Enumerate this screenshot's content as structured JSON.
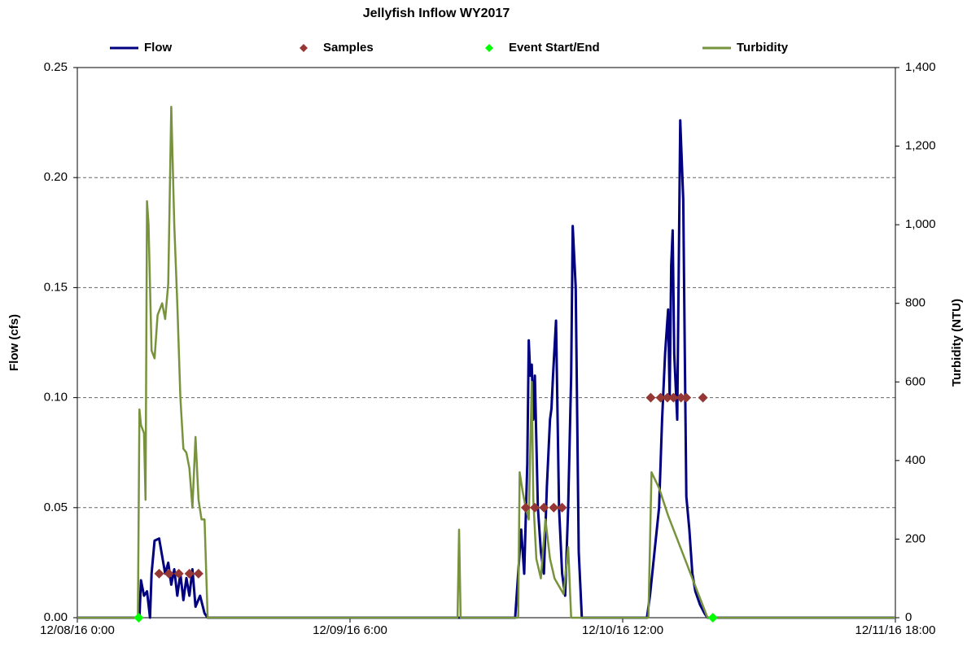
{
  "chart_data": {
    "type": "line",
    "title": "Jellyfish Inflow WY2017",
    "ylabel": "Flow (cfs)",
    "y2label": "Turbidity (NTU)",
    "legend": "top",
    "grid": true,
    "xlim": [
      "12/08/16 0:00",
      "12/11/16 18:00"
    ],
    "xticks": [
      "12/08/16 0:00",
      "12/09/16 6:00",
      "12/10/16 12:00",
      "12/11/16 18:00"
    ],
    "ylim": [
      0,
      0.25
    ],
    "yticks": [
      {
        "value": 0,
        "label": "0.00"
      },
      {
        "value": 0.05,
        "label": "0.05"
      },
      {
        "value": 0.1,
        "label": "0.10"
      },
      {
        "value": 0.15,
        "label": "0.15"
      },
      {
        "value": 0.2,
        "label": "0.20"
      },
      {
        "value": 0.25,
        "label": "0.25"
      }
    ],
    "y2lim": [
      0,
      1400
    ],
    "y2ticks": [
      0,
      200,
      400,
      600,
      800,
      {
        "value": 1000,
        "label": "1,000"
      },
      {
        "value": 1200,
        "label": "1,200"
      },
      {
        "value": 1400,
        "label": "1,400"
      }
    ],
    "series": [
      {
        "name": "Flow",
        "color": "#000080",
        "mode": "line",
        "x": [
          "12/08/16 0:00",
          "12/08/16 6:50",
          "12/08/16 7:00",
          "12/08/16 7:20",
          "12/08/16 7:40",
          "12/08/16 8:00",
          "12/08/16 8:10",
          "12/08/16 8:30",
          "12/08/16 9:00",
          "12/08/16 9:20",
          "12/08/16 9:40",
          "12/08/16 10:00",
          "12/08/16 10:20",
          "12/08/16 10:40",
          "12/08/16 11:00",
          "12/08/16 11:20",
          "12/08/16 11:40",
          "12/08/16 12:00",
          "12/08/16 12:20",
          "12/08/16 12:40",
          "12/08/16 13:00",
          "12/08/16 13:30",
          "12/08/16 14:00",
          "12/08/16 14:20",
          "12/10/16 0:10",
          "12/10/16 0:30",
          "12/10/16 0:50",
          "12/10/16 1:10",
          "12/10/16 1:30",
          "12/10/16 1:40",
          "12/10/16 1:50",
          "12/10/16 2:00",
          "12/10/16 2:10",
          "12/10/16 2:20",
          "12/10/16 2:40",
          "12/10/16 3:00",
          "12/10/16 3:20",
          "12/10/16 3:40",
          "12/10/16 4:00",
          "12/10/16 4:10",
          "12/10/16 4:20",
          "12/10/16 4:40",
          "12/10/16 5:00",
          "12/10/16 5:20",
          "12/10/16 5:40",
          "12/10/16 6:00",
          "12/10/16 6:20",
          "12/10/16 6:30",
          "12/10/16 6:50",
          "12/10/16 7:10",
          "12/10/16 7:30",
          "12/10/16 14:40",
          "12/10/16 15:00",
          "12/10/16 15:30",
          "12/10/16 16:00",
          "12/10/16 16:20",
          "12/10/16 16:40",
          "12/10/16 17:00",
          "12/10/16 17:10",
          "12/10/16 17:20",
          "12/10/16 17:30",
          "12/10/16 17:40",
          "12/10/16 18:00",
          "12/10/16 18:20",
          "12/10/16 18:40",
          "12/10/16 18:50",
          "12/10/16 19:00",
          "12/10/16 19:20",
          "12/10/16 19:40",
          "12/10/16 20:00",
          "12/10/16 20:30",
          "12/10/16 21:00",
          "12/10/16 21:20",
          "12/11/16 18:00"
        ],
        "values": [
          0,
          0,
          0.017,
          0.01,
          0.012,
          0.0,
          0.02,
          0.035,
          0.036,
          0.028,
          0.02,
          0.025,
          0.015,
          0.022,
          0.01,
          0.02,
          0.008,
          0.018,
          0.01,
          0.022,
          0.005,
          0.01,
          0.002,
          0,
          0,
          0.02,
          0.04,
          0.02,
          0.07,
          0.126,
          0.11,
          0.115,
          0.09,
          0.11,
          0.05,
          0.03,
          0.02,
          0.06,
          0.09,
          0.095,
          0.11,
          0.135,
          0.05,
          0.02,
          0.01,
          0.05,
          0.11,
          0.178,
          0.15,
          0.03,
          0,
          0,
          0.01,
          0.03,
          0.05,
          0.09,
          0.12,
          0.14,
          0.1,
          0.16,
          0.176,
          0.12,
          0.09,
          0.226,
          0.19,
          0.12,
          0.055,
          0.04,
          0.02,
          0.012,
          0.006,
          0.002,
          0,
          0
        ]
      },
      {
        "name": "Samples",
        "color": "#953735",
        "mode": "marker",
        "x": [
          "12/08/16 9:00",
          "12/08/16 10:05",
          "12/08/16 11:10",
          "12/08/16 12:20",
          "12/08/16 13:20",
          "12/10/16 1:20",
          "12/10/16 2:20",
          "12/10/16 3:20",
          "12/10/16 4:25",
          "12/10/16 5:20",
          "12/10/16 15:05",
          "12/10/16 16:10",
          "12/10/16 16:55",
          "12/10/16 17:35",
          "12/10/16 18:25",
          "12/10/16 19:00",
          "12/10/16 20:50"
        ],
        "values": [
          0.02,
          0.02,
          0.02,
          0.02,
          0.02,
          0.05,
          0.05,
          0.05,
          0.05,
          0.05,
          0.1,
          0.1,
          0.1,
          0.1,
          0.1,
          0.1,
          0.1
        ]
      },
      {
        "name": "Event Start/End",
        "color": "#00FF00",
        "mode": "marker",
        "x": [
          "12/08/16 6:45",
          "12/10/16 21:55"
        ],
        "values": [
          0,
          0
        ]
      },
      {
        "name": "Turbidity",
        "color": "#77933C",
        "mode": "line",
        "axis": "y2",
        "x": [
          "12/08/16 0:00",
          "12/08/16 6:40",
          "12/08/16 6:50",
          "12/08/16 7:00",
          "12/08/16 7:20",
          "12/08/16 7:30",
          "12/08/16 7:40",
          "12/08/16 7:50",
          "12/08/16 8:10",
          "12/08/16 8:30",
          "12/08/16 8:50",
          "12/08/16 9:20",
          "12/08/16 9:40",
          "12/08/16 10:00",
          "12/08/16 10:20",
          "12/08/16 10:40",
          "12/08/16 11:00",
          "12/08/16 11:20",
          "12/08/16 11:40",
          "12/08/16 12:00",
          "12/08/16 12:20",
          "12/08/16 12:40",
          "12/08/16 13:00",
          "12/08/16 13:20",
          "12/08/16 13:40",
          "12/08/16 14:00",
          "12/08/16 14:20",
          "12/09/16 17:50",
          "12/09/16 18:00",
          "12/09/16 18:10",
          "12/10/16 0:30",
          "12/10/16 0:40",
          "12/10/16 1:00",
          "12/10/16 1:20",
          "12/10/16 1:40",
          "12/10/16 2:00",
          "12/10/16 2:10",
          "12/10/16 2:30",
          "12/10/16 3:00",
          "12/10/16 3:30",
          "12/10/16 4:00",
          "12/10/16 4:30",
          "12/10/16 5:00",
          "12/10/16 5:30",
          "12/10/16 6:00",
          "12/10/16 6:20",
          "12/10/16 14:50",
          "12/10/16 15:10",
          "12/10/16 16:00",
          "12/10/16 17:00",
          "12/10/16 18:00",
          "12/10/16 19:00",
          "12/10/16 20:00",
          "12/10/16 21:00",
          "12/10/16 21:20",
          "12/11/16 18:00"
        ],
        "values": [
          0,
          0,
          530,
          490,
          470,
          300,
          1060,
          1000,
          680,
          660,
          770,
          800,
          760,
          850,
          1300,
          1000,
          800,
          560,
          430,
          420,
          380,
          280,
          460,
          300,
          250,
          250,
          0,
          0,
          224,
          0,
          0,
          370,
          320,
          280,
          250,
          600,
          300,
          150,
          100,
          250,
          150,
          100,
          80,
          60,
          180,
          0,
          0,
          370,
          330,
          260,
          200,
          140,
          80,
          20,
          0,
          0
        ]
      }
    ]
  }
}
